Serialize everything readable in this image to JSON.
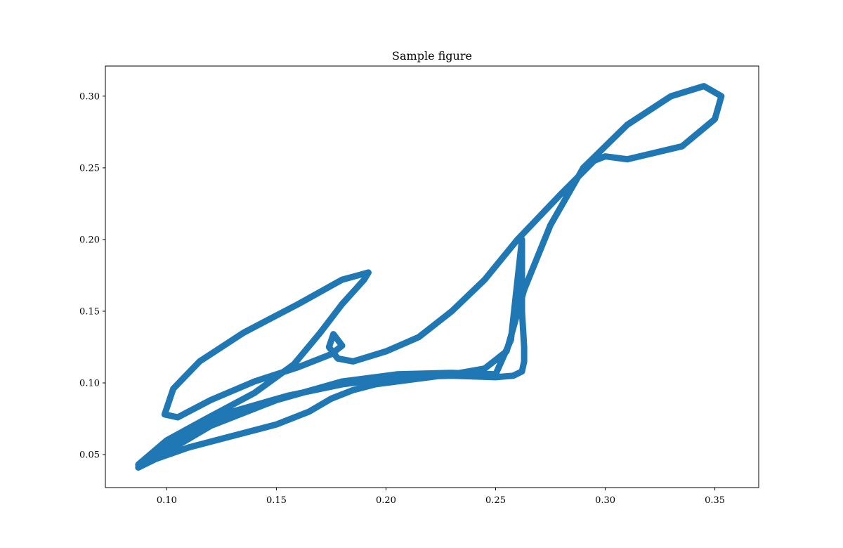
{
  "chart_data": {
    "type": "line",
    "title": "Sample figure",
    "xlabel": "",
    "ylabel": "",
    "xlim": [
      0.072,
      0.37
    ],
    "ylim": [
      0.027,
      0.321
    ],
    "xticks": [
      0.1,
      0.15,
      0.2,
      0.25,
      0.3,
      0.35
    ],
    "xtick_labels": [
      "0.10",
      "0.15",
      "0.20",
      "0.25",
      "0.30",
      "0.35"
    ],
    "yticks": [
      0.05,
      0.1,
      0.15,
      0.2,
      0.25,
      0.3
    ],
    "ytick_labels": [
      "0.05",
      "0.10",
      "0.15",
      "0.20",
      "0.25",
      "0.30"
    ],
    "grid": false,
    "legend": "none",
    "color": "#1f77b4",
    "series": [
      {
        "x": [
          0.262,
          0.262,
          0.263,
          0.263,
          0.262,
          0.258,
          0.25,
          0.23,
          0.205,
          0.18,
          0.155,
          0.13,
          0.11,
          0.095,
          0.087,
          0.095,
          0.11,
          0.13,
          0.15,
          0.165,
          0.175,
          0.185,
          0.195,
          0.21,
          0.23,
          0.245,
          0.255,
          0.263,
          0.275,
          0.29,
          0.31,
          0.33,
          0.345,
          0.353,
          0.35,
          0.335,
          0.31,
          0.3,
          0.295,
          0.28,
          0.26,
          0.245,
          0.23,
          0.215,
          0.2,
          0.185,
          0.178,
          0.174,
          0.176,
          0.18,
          0.175,
          0.16,
          0.14,
          0.12,
          0.105,
          0.099,
          0.103,
          0.115,
          0.135,
          0.16,
          0.18,
          0.192,
          0.19,
          0.18,
          0.17,
          0.158,
          0.14,
          0.118,
          0.1,
          0.087,
          0.1,
          0.12,
          0.15,
          0.18,
          0.205,
          0.23,
          0.25,
          0.257,
          0.262
        ],
        "y": [
          0.2,
          0.15,
          0.125,
          0.115,
          0.108,
          0.105,
          0.104,
          0.105,
          0.104,
          0.099,
          0.091,
          0.08,
          0.066,
          0.052,
          0.041,
          0.047,
          0.055,
          0.063,
          0.071,
          0.08,
          0.089,
          0.095,
          0.099,
          0.102,
          0.106,
          0.11,
          0.122,
          0.165,
          0.21,
          0.25,
          0.28,
          0.3,
          0.307,
          0.3,
          0.284,
          0.265,
          0.256,
          0.258,
          0.255,
          0.232,
          0.2,
          0.172,
          0.15,
          0.132,
          0.122,
          0.115,
          0.117,
          0.125,
          0.134,
          0.126,
          0.12,
          0.111,
          0.101,
          0.088,
          0.076,
          0.078,
          0.096,
          0.115,
          0.135,
          0.155,
          0.172,
          0.177,
          0.172,
          0.155,
          0.135,
          0.113,
          0.093,
          0.075,
          0.06,
          0.043,
          0.052,
          0.07,
          0.088,
          0.101,
          0.106,
          0.107,
          0.106,
          0.13,
          0.2
        ]
      }
    ]
  }
}
